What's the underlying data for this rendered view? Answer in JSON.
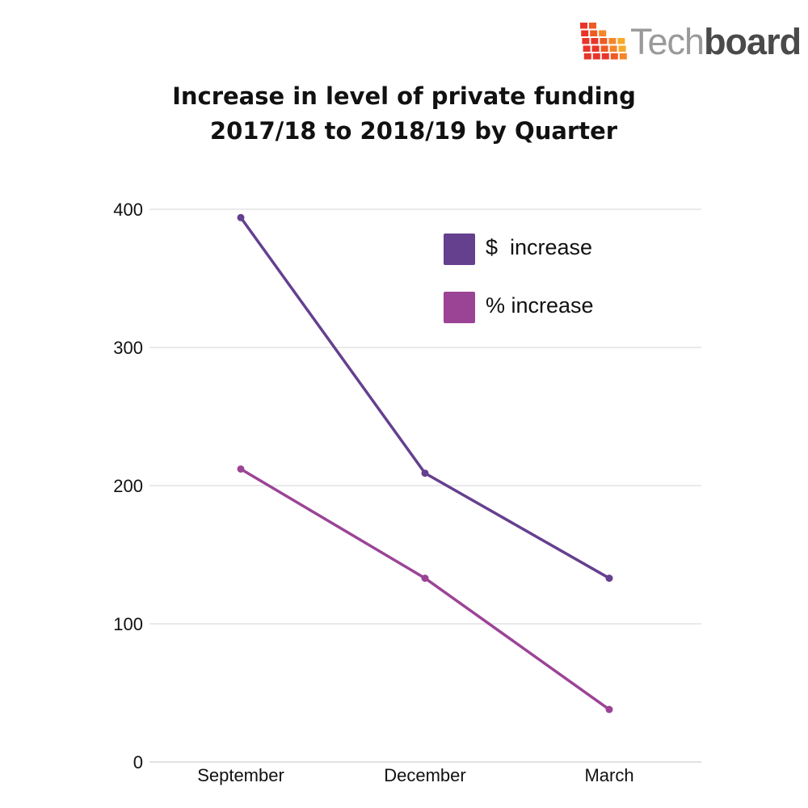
{
  "brand": {
    "name_part1": "Tech",
    "name_part2": "board",
    "icon": "grid-bars-logo-icon"
  },
  "chart_data": {
    "type": "line",
    "title_line1": "Increase in level of private funding",
    "title_line2": "2017/18 to 2018/19 by Quarter",
    "categories": [
      "September",
      "December",
      "March"
    ],
    "series": [
      {
        "name": "$  increase",
        "values": [
          394,
          209,
          133
        ],
        "color": "#65408f"
      },
      {
        "name": "% increase",
        "values": [
          212,
          133,
          38
        ],
        "color": "#9b4496"
      }
    ],
    "xlabel": "",
    "ylabel": "",
    "ylim": [
      0,
      400
    ],
    "yticks": [
      "0",
      "100",
      "200",
      "300",
      "400"
    ],
    "grid": true,
    "legend_position": "top-right"
  }
}
